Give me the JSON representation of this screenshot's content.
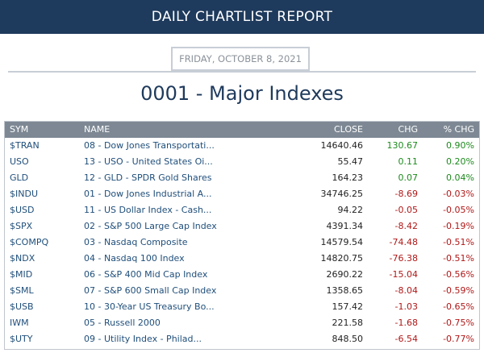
{
  "header": {
    "title": "DAILY CHARTLIST REPORT"
  },
  "date": "FRIDAY, OCTOBER 8, 2021",
  "page_title": "0001 - Major Indexes",
  "table": {
    "columns": [
      "SYM",
      "NAME",
      "CLOSE",
      "CHG",
      "% CHG"
    ],
    "rows": [
      {
        "sym": "$TRAN",
        "name": "08 - Dow Jones Transportati...",
        "close": "14640.46",
        "chg": "130.67",
        "pct": "0.90%",
        "dir": "pos"
      },
      {
        "sym": "USO",
        "name": "13 - USO - United States Oi...",
        "close": "55.47",
        "chg": "0.11",
        "pct": "0.20%",
        "dir": "pos"
      },
      {
        "sym": "GLD",
        "name": "12 - GLD - SPDR Gold Shares",
        "close": "164.23",
        "chg": "0.07",
        "pct": "0.04%",
        "dir": "pos"
      },
      {
        "sym": "$INDU",
        "name": "01 - Dow Jones Industrial A...",
        "close": "34746.25",
        "chg": "-8.69",
        "pct": "-0.03%",
        "dir": "neg"
      },
      {
        "sym": "$USD",
        "name": "11 - US Dollar Index - Cash...",
        "close": "94.22",
        "chg": "-0.05",
        "pct": "-0.05%",
        "dir": "neg"
      },
      {
        "sym": "$SPX",
        "name": "02 - S&P 500 Large Cap Index",
        "close": "4391.34",
        "chg": "-8.42",
        "pct": "-0.19%",
        "dir": "neg"
      },
      {
        "sym": "$COMPQ",
        "name": "03 - Nasdaq Composite",
        "close": "14579.54",
        "chg": "-74.48",
        "pct": "-0.51%",
        "dir": "neg"
      },
      {
        "sym": "$NDX",
        "name": "04 - Nasdaq 100 Index",
        "close": "14820.75",
        "chg": "-76.38",
        "pct": "-0.51%",
        "dir": "neg"
      },
      {
        "sym": "$MID",
        "name": "06 - S&P 400 Mid Cap Index",
        "close": "2690.22",
        "chg": "-15.04",
        "pct": "-0.56%",
        "dir": "neg"
      },
      {
        "sym": "$SML",
        "name": "07 - S&P 600 Small Cap Index",
        "close": "1358.65",
        "chg": "-8.04",
        "pct": "-0.59%",
        "dir": "neg"
      },
      {
        "sym": "$USB",
        "name": "10 - 30-Year US Treasury Bo...",
        "close": "157.42",
        "chg": "-1.03",
        "pct": "-0.65%",
        "dir": "neg"
      },
      {
        "sym": "IWM",
        "name": "05 - Russell 2000",
        "close": "221.58",
        "chg": "-1.68",
        "pct": "-0.75%",
        "dir": "neg"
      },
      {
        "sym": "$UTY",
        "name": "09 - Utility Index - Philad...",
        "close": "848.50",
        "chg": "-6.54",
        "pct": "-0.77%",
        "dir": "neg"
      }
    ]
  },
  "colors": {
    "header_bg": "#1e3a5c",
    "positive": "#1e8a1e",
    "negative": "#b01818",
    "link": "#1f4e7a"
  }
}
